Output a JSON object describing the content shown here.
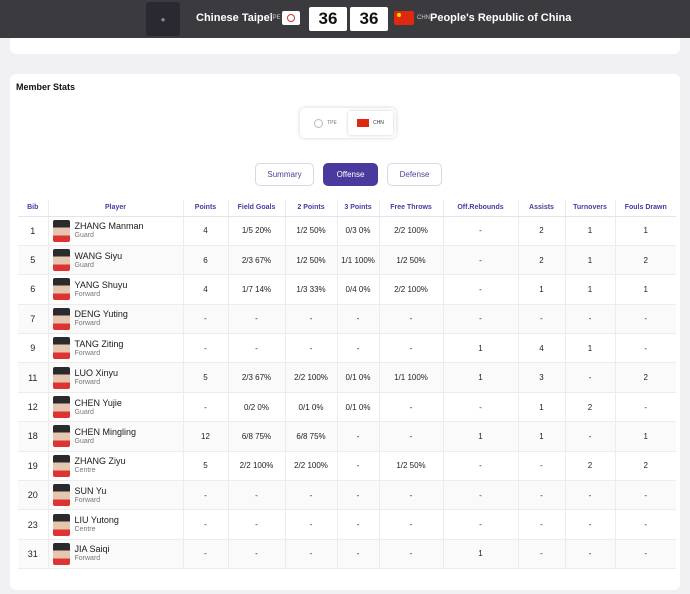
{
  "header": {
    "home_team": "Chinese Taipei",
    "home_code": "TPE",
    "home_score": "36",
    "away_score": "36",
    "away_code": "CHN",
    "away_team": "People's Republic of China",
    "accent": "#4b3a9e"
  },
  "section": {
    "title": "Member Stats",
    "toggle_left": "TPE",
    "toggle_right": "CHN"
  },
  "tabs": [
    "Summary",
    "Offense",
    "Defense"
  ],
  "table": {
    "headers": [
      "Bib",
      "Player",
      "Points",
      "Field Goals",
      "2 Points",
      "3 Points",
      "Free Throws",
      "Off.Rebounds",
      "Assists",
      "Turnovers",
      "Fouls Drawn"
    ],
    "rows": [
      {
        "bib": "1",
        "name": "ZHANG Manman",
        "pos": "Guard",
        "pts": "4",
        "fg": "1/5 20%",
        "p2": "1/2 50%",
        "p3": "0/3 0%",
        "ft": "2/2 100%",
        "oreb": "-",
        "ast": "2",
        "to": "1",
        "fd": "1"
      },
      {
        "bib": "5",
        "name": "WANG Siyu",
        "pos": "Guard",
        "pts": "6",
        "fg": "2/3 67%",
        "p2": "1/2 50%",
        "p3": "1/1 100%",
        "ft": "1/2 50%",
        "oreb": "-",
        "ast": "2",
        "to": "1",
        "fd": "2"
      },
      {
        "bib": "6",
        "name": "YANG Shuyu",
        "pos": "Forward",
        "pts": "4",
        "fg": "1/7 14%",
        "p2": "1/3 33%",
        "p3": "0/4 0%",
        "ft": "2/2 100%",
        "oreb": "-",
        "ast": "1",
        "to": "1",
        "fd": "1"
      },
      {
        "bib": "7",
        "name": "DENG Yuting",
        "pos": "Forward",
        "pts": "-",
        "fg": "-",
        "p2": "-",
        "p3": "-",
        "ft": "-",
        "oreb": "-",
        "ast": "-",
        "to": "-",
        "fd": "-"
      },
      {
        "bib": "9",
        "name": "TANG Ziting",
        "pos": "Forward",
        "pts": "-",
        "fg": "-",
        "p2": "-",
        "p3": "-",
        "ft": "-",
        "oreb": "1",
        "ast": "4",
        "to": "1",
        "fd": "-"
      },
      {
        "bib": "11",
        "name": "LUO Xinyu",
        "pos": "Forward",
        "pts": "5",
        "fg": "2/3 67%",
        "p2": "2/2 100%",
        "p3": "0/1 0%",
        "ft": "1/1 100%",
        "oreb": "1",
        "ast": "3",
        "to": "-",
        "fd": "2"
      },
      {
        "bib": "12",
        "name": "CHEN Yujie",
        "pos": "Guard",
        "pts": "-",
        "fg": "0/2 0%",
        "p2": "0/1 0%",
        "p3": "0/1 0%",
        "ft": "-",
        "oreb": "-",
        "ast": "1",
        "to": "2",
        "fd": "-"
      },
      {
        "bib": "18",
        "name": "CHEN Mingling",
        "pos": "Guard",
        "pts": "12",
        "fg": "6/8 75%",
        "p2": "6/8 75%",
        "p3": "-",
        "ft": "-",
        "oreb": "1",
        "ast": "1",
        "to": "-",
        "fd": "1"
      },
      {
        "bib": "19",
        "name": "ZHANG Ziyu",
        "pos": "Centre",
        "pts": "5",
        "fg": "2/2 100%",
        "p2": "2/2 100%",
        "p3": "-",
        "ft": "1/2 50%",
        "oreb": "-",
        "ast": "-",
        "to": "2",
        "fd": "2"
      },
      {
        "bib": "20",
        "name": "SUN Yu",
        "pos": "Forward",
        "pts": "-",
        "fg": "-",
        "p2": "-",
        "p3": "-",
        "ft": "-",
        "oreb": "-",
        "ast": "-",
        "to": "-",
        "fd": "-"
      },
      {
        "bib": "23",
        "name": "LIU Yutong",
        "pos": "Centre",
        "pts": "-",
        "fg": "-",
        "p2": "-",
        "p3": "-",
        "ft": "-",
        "oreb": "-",
        "ast": "-",
        "to": "-",
        "fd": "-"
      },
      {
        "bib": "31",
        "name": "JIA Saiqi",
        "pos": "Forward",
        "pts": "-",
        "fg": "-",
        "p2": "-",
        "p3": "-",
        "ft": "-",
        "oreb": "1",
        "ast": "-",
        "to": "-",
        "fd": "-"
      }
    ]
  }
}
